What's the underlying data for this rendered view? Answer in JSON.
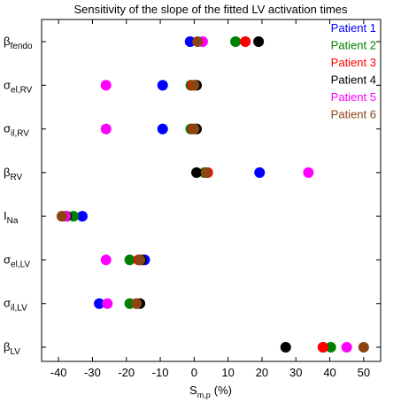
{
  "chart_data": {
    "type": "dot",
    "title": "Sensitivity of the slope of the fitted LV activation times",
    "category_symbols": [
      "β",
      "σ",
      "σ",
      "β",
      "I",
      "σ",
      "σ",
      "β"
    ],
    "category_subscripts": [
      "fendo",
      "el,RV",
      "il,RV",
      "RV",
      "Na",
      "el,LV",
      "il,LV",
      "LV"
    ],
    "xlabel_symbol": "S",
    "xlabel_subscript": "m,p",
    "xlabel_unit": "(%)",
    "xlim": [
      -45,
      55
    ],
    "xticks": [
      -40,
      -30,
      -20,
      -10,
      0,
      10,
      20,
      30,
      40,
      50
    ],
    "legend": "top-right",
    "series": [
      {
        "name": "Patient 1",
        "color": "#0000ff",
        "values": [
          -1.2,
          -9.3,
          -9.3,
          19.3,
          -33,
          -14.6,
          -28,
          38
        ]
      },
      {
        "name": "Patient 2",
        "color": "#008000",
        "values": [
          12.2,
          -1,
          -1,
          3,
          -35.6,
          -19,
          -19,
          40.3
        ]
      },
      {
        "name": "Patient 3",
        "color": "#ff0000",
        "values": [
          15.1,
          -0.5,
          -0.3,
          4,
          -39,
          -16.4,
          -17,
          38
        ]
      },
      {
        "name": "Patient 4",
        "color": "#000000",
        "values": [
          19,
          0.7,
          0.7,
          0.7,
          -37.7,
          -15.6,
          -16,
          27
        ]
      },
      {
        "name": "Patient 5",
        "color": "#ff00ff",
        "values": [
          2.5,
          -26,
          -26,
          33.7,
          -38,
          -26,
          -25.6,
          45
        ]
      },
      {
        "name": "Patient 6",
        "color": "#8b4513",
        "values": [
          1,
          0,
          0,
          3.5,
          -39,
          -16,
          -17,
          50
        ]
      }
    ]
  }
}
